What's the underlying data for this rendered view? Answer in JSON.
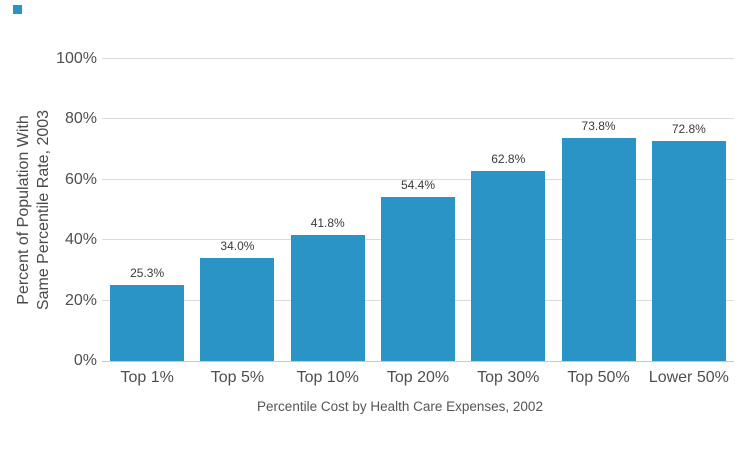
{
  "chart_data": {
    "type": "bar",
    "categories": [
      "Top 1%",
      "Top 5%",
      "Top 10%",
      "Top 20%",
      "Top 30%",
      "Top 50%",
      "Lower 50%"
    ],
    "values": [
      25.3,
      34.0,
      41.8,
      54.4,
      62.8,
      73.8,
      72.8
    ],
    "value_labels": [
      "25.3%",
      "34.0%",
      "41.8%",
      "54.4%",
      "62.8%",
      "73.8%",
      "72.8%"
    ],
    "xlabel": "Percentile Cost by Health Care Expenses, 2002",
    "ylabel": "Percent of Population With Same Percentile Rate, 2003",
    "ylabel_lines": [
      "Percent of Population With",
      "Same Percentile Rate, 2003"
    ],
    "y_ticks": [
      0,
      20,
      40,
      60,
      80,
      100
    ],
    "y_tick_labels": [
      "0%",
      "20%",
      "40%",
      "60%",
      "80%",
      "100%"
    ],
    "ylim": [
      0,
      100
    ],
    "grid": true,
    "bar_color": "#2A94C6",
    "gridline_color": "#dadada",
    "legend_position": "top-left"
  }
}
